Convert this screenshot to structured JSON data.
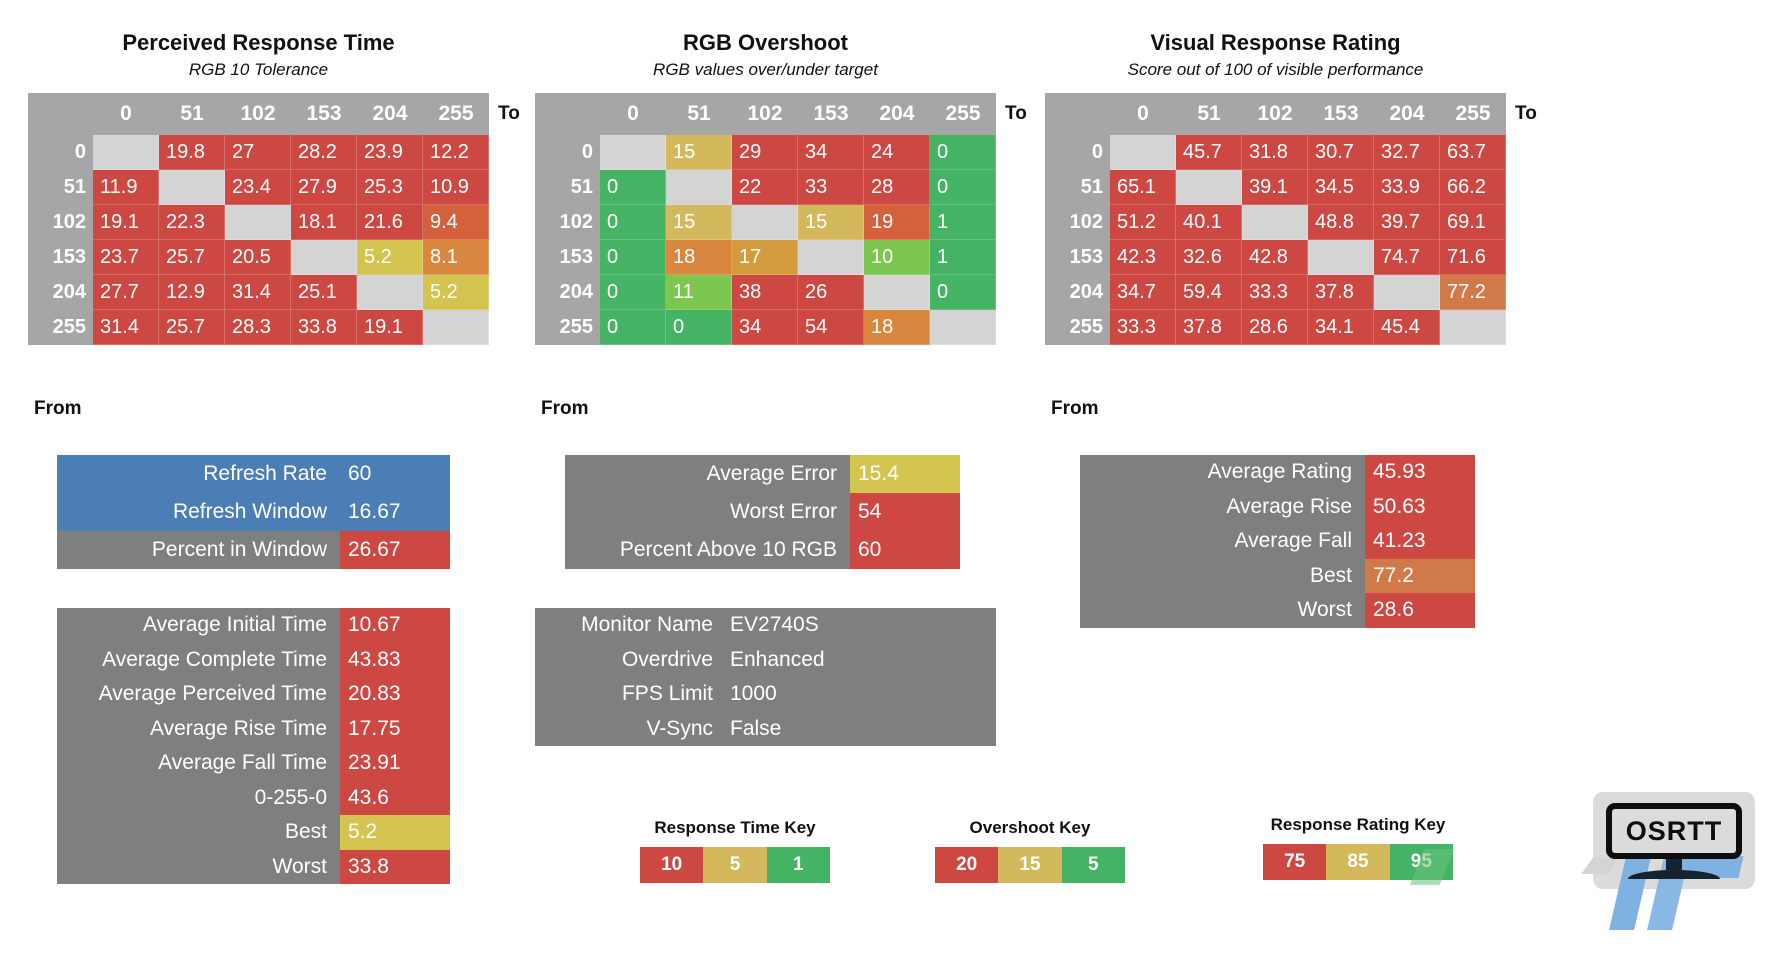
{
  "palette": {
    "red": "#CD4843",
    "yellow": "#D2C44E",
    "tan": "#D4B85C",
    "green": "#44B364",
    "light_green": "#7CC74F",
    "orange": "#D9873F",
    "gold_orange": "#D49B3E",
    "red_orange": "#D4603C",
    "salmon": "#D2794A",
    "header_gray": "#A6A6A6",
    "diag_gray": "#D4D4D4",
    "box_gray": "#7F7F7F",
    "blue": "#4A7EB4"
  },
  "tables": [
    {
      "title": "Perceived Response Time",
      "subtitle": "RGB 10 Tolerance",
      "to_label": "To",
      "from_label": "From",
      "col_headers": [
        "0",
        "51",
        "102",
        "153",
        "204",
        "255"
      ],
      "rows": [
        {
          "label": "0",
          "cells": [
            null,
            [
              "19.8",
              "red"
            ],
            [
              "27",
              "red"
            ],
            [
              "28.2",
              "red"
            ],
            [
              "23.9",
              "red"
            ],
            [
              "12.2",
              "red"
            ]
          ]
        },
        {
          "label": "51",
          "cells": [
            [
              "11.9",
              "red"
            ],
            null,
            [
              "23.4",
              "red"
            ],
            [
              "27.9",
              "red"
            ],
            [
              "25.3",
              "red"
            ],
            [
              "10.9",
              "red"
            ]
          ]
        },
        {
          "label": "102",
          "cells": [
            [
              "19.1",
              "red"
            ],
            [
              "22.3",
              "red"
            ],
            null,
            [
              "18.1",
              "red"
            ],
            [
              "21.6",
              "red"
            ],
            [
              "9.4",
              "red_orange"
            ]
          ]
        },
        {
          "label": "153",
          "cells": [
            [
              "23.7",
              "red"
            ],
            [
              "25.7",
              "red"
            ],
            [
              "20.5",
              "red"
            ],
            null,
            [
              "5.2",
              "yellow"
            ],
            [
              "8.1",
              "orange"
            ]
          ]
        },
        {
          "label": "204",
          "cells": [
            [
              "27.7",
              "red"
            ],
            [
              "12.9",
              "red"
            ],
            [
              "31.4",
              "red"
            ],
            [
              "25.1",
              "red"
            ],
            null,
            [
              "5.2",
              "yellow"
            ]
          ]
        },
        {
          "label": "255",
          "cells": [
            [
              "31.4",
              "red"
            ],
            [
              "25.7",
              "red"
            ],
            [
              "28.3",
              "red"
            ],
            [
              "33.8",
              "red"
            ],
            [
              "19.1",
              "red"
            ],
            null
          ]
        }
      ]
    },
    {
      "title": "RGB Overshoot",
      "subtitle": "RGB values over/under target",
      "to_label": "To",
      "from_label": "From",
      "col_headers": [
        "0",
        "51",
        "102",
        "153",
        "204",
        "255"
      ],
      "rows": [
        {
          "label": "0",
          "cells": [
            null,
            [
              "15",
              "tan"
            ],
            [
              "29",
              "red"
            ],
            [
              "34",
              "red"
            ],
            [
              "24",
              "red"
            ],
            [
              "0",
              "green"
            ]
          ]
        },
        {
          "label": "51",
          "cells": [
            [
              "0",
              "green"
            ],
            null,
            [
              "22",
              "red"
            ],
            [
              "33",
              "red"
            ],
            [
              "28",
              "red"
            ],
            [
              "0",
              "green"
            ]
          ]
        },
        {
          "label": "102",
          "cells": [
            [
              "0",
              "green"
            ],
            [
              "15",
              "tan"
            ],
            null,
            [
              "15",
              "tan"
            ],
            [
              "19",
              "red_orange"
            ],
            [
              "1",
              "green"
            ]
          ]
        },
        {
          "label": "153",
          "cells": [
            [
              "0",
              "green"
            ],
            [
              "18",
              "orange"
            ],
            [
              "17",
              "gold_orange"
            ],
            null,
            [
              "10",
              "light_green"
            ],
            [
              "1",
              "green"
            ]
          ]
        },
        {
          "label": "204",
          "cells": [
            [
              "0",
              "green"
            ],
            [
              "11",
              "light_green"
            ],
            [
              "38",
              "red"
            ],
            [
              "26",
              "red"
            ],
            null,
            [
              "0",
              "green"
            ]
          ]
        },
        {
          "label": "255",
          "cells": [
            [
              "0",
              "green"
            ],
            [
              "0",
              "green"
            ],
            [
              "34",
              "red"
            ],
            [
              "54",
              "red"
            ],
            [
              "18",
              "orange"
            ],
            null
          ]
        }
      ]
    },
    {
      "title": "Visual Response Rating",
      "subtitle": "Score out of 100 of visible performance",
      "to_label": "To",
      "from_label": "From",
      "col_headers": [
        "0",
        "51",
        "102",
        "153",
        "204",
        "255"
      ],
      "rows": [
        {
          "label": "0",
          "cells": [
            null,
            [
              "45.7",
              "red"
            ],
            [
              "31.8",
              "red"
            ],
            [
              "30.7",
              "red"
            ],
            [
              "32.7",
              "red"
            ],
            [
              "63.7",
              "red"
            ]
          ]
        },
        {
          "label": "51",
          "cells": [
            [
              "65.1",
              "red"
            ],
            null,
            [
              "39.1",
              "red"
            ],
            [
              "34.5",
              "red"
            ],
            [
              "33.9",
              "red"
            ],
            [
              "66.2",
              "red"
            ]
          ]
        },
        {
          "label": "102",
          "cells": [
            [
              "51.2",
              "red"
            ],
            [
              "40.1",
              "red"
            ],
            null,
            [
              "48.8",
              "red"
            ],
            [
              "39.7",
              "red"
            ],
            [
              "69.1",
              "red"
            ]
          ]
        },
        {
          "label": "153",
          "cells": [
            [
              "42.3",
              "red"
            ],
            [
              "32.6",
              "red"
            ],
            [
              "42.8",
              "red"
            ],
            null,
            [
              "74.7",
              "red"
            ],
            [
              "71.6",
              "red"
            ]
          ]
        },
        {
          "label": "204",
          "cells": [
            [
              "34.7",
              "red"
            ],
            [
              "59.4",
              "red"
            ],
            [
              "33.3",
              "red"
            ],
            [
              "37.8",
              "red"
            ],
            null,
            [
              "77.2",
              "salmon"
            ]
          ]
        },
        {
          "label": "255",
          "cells": [
            [
              "33.3",
              "red"
            ],
            [
              "37.8",
              "red"
            ],
            [
              "28.6",
              "red"
            ],
            [
              "34.1",
              "red"
            ],
            [
              "45.4",
              "red"
            ],
            null
          ]
        }
      ]
    }
  ],
  "refresh_box": {
    "rows": [
      {
        "label": "Refresh Rate",
        "value": "60",
        "row_bg": "blue",
        "value_bg": null
      },
      {
        "label": "Refresh Window",
        "value": "16.67",
        "row_bg": "blue",
        "value_bg": null
      },
      {
        "label": "Percent in Window",
        "value": "26.67",
        "row_bg": "gray",
        "value_bg": "red"
      }
    ]
  },
  "stats_box": {
    "rows": [
      {
        "label": "Average Initial Time",
        "value": "10.67",
        "row_bg": "gray",
        "value_bg": "red"
      },
      {
        "label": "Average Complete Time",
        "value": "43.83",
        "row_bg": "gray",
        "value_bg": "red"
      },
      {
        "label": "Average Perceived Time",
        "value": "20.83",
        "row_bg": "gray",
        "value_bg": "red"
      },
      {
        "label": "Average Rise Time",
        "value": "17.75",
        "row_bg": "gray",
        "value_bg": "red"
      },
      {
        "label": "Average Fall Time",
        "value": "23.91",
        "row_bg": "gray",
        "value_bg": "red"
      },
      {
        "label": "0-255-0",
        "value": "43.6",
        "row_bg": "gray",
        "value_bg": "red"
      },
      {
        "label": "Best",
        "value": "5.2",
        "row_bg": "gray",
        "value_bg": "yellow"
      },
      {
        "label": "Worst",
        "value": "33.8",
        "row_bg": "gray",
        "value_bg": "red"
      }
    ]
  },
  "error_box": {
    "rows": [
      {
        "label": "Average Error",
        "value": "15.4",
        "row_bg": "gray",
        "value_bg": "yellow"
      },
      {
        "label": "Worst Error",
        "value": "54",
        "row_bg": "gray",
        "value_bg": "red"
      },
      {
        "label": "Percent Above 10 RGB",
        "value": "60",
        "row_bg": "gray",
        "value_bg": "red"
      }
    ]
  },
  "monitor_box": {
    "rows": [
      {
        "label": "Monitor Name",
        "value": "EV2740S",
        "row_bg": "gray",
        "value_bg": null
      },
      {
        "label": "Overdrive",
        "value": "Enhanced",
        "row_bg": "gray",
        "value_bg": null
      },
      {
        "label": "FPS Limit",
        "value": "1000",
        "row_bg": "gray",
        "value_bg": null
      },
      {
        "label": "V-Sync",
        "value": "False",
        "row_bg": "gray",
        "value_bg": null
      }
    ]
  },
  "rating_box": {
    "rows": [
      {
        "label": "Average Rating",
        "value": "45.93",
        "row_bg": "gray",
        "value_bg": "red"
      },
      {
        "label": "Average Rise",
        "value": "50.63",
        "row_bg": "gray",
        "value_bg": "red"
      },
      {
        "label": "Average Fall",
        "value": "41.23",
        "row_bg": "gray",
        "value_bg": "red"
      },
      {
        "label": "Best",
        "value": "77.2",
        "row_bg": "gray",
        "value_bg": "salmon"
      },
      {
        "label": "Worst",
        "value": "28.6",
        "row_bg": "gray",
        "value_bg": "red"
      }
    ]
  },
  "keys": [
    {
      "title": "Response Time Key",
      "segments": [
        {
          "v": "10",
          "c": "red"
        },
        {
          "v": "5",
          "c": "tan"
        },
        {
          "v": "1",
          "c": "green"
        }
      ]
    },
    {
      "title": "Overshoot Key",
      "segments": [
        {
          "v": "20",
          "c": "red"
        },
        {
          "v": "15",
          "c": "tan"
        },
        {
          "v": "5",
          "c": "green"
        }
      ]
    },
    {
      "title": "Response Rating Key",
      "segments": [
        {
          "v": "75",
          "c": "red"
        },
        {
          "v": "85",
          "c": "tan"
        },
        {
          "v": "95",
          "c": "green"
        }
      ]
    }
  ],
  "logo": {
    "text": "OSRTT"
  },
  "chart_data": [
    {
      "type": "heatmap",
      "title": "Perceived Response Time",
      "subtitle": "RGB 10 Tolerance",
      "x_label": "To",
      "y_label": "From",
      "x": [
        0,
        51,
        102,
        153,
        204,
        255
      ],
      "y": [
        0,
        51,
        102,
        153,
        204,
        255
      ],
      "values": [
        [
          null,
          19.8,
          27,
          28.2,
          23.9,
          12.2
        ],
        [
          11.9,
          null,
          23.4,
          27.9,
          25.3,
          10.9
        ],
        [
          19.1,
          22.3,
          null,
          18.1,
          21.6,
          9.4
        ],
        [
          23.7,
          25.7,
          20.5,
          null,
          5.2,
          8.1
        ],
        [
          27.7,
          12.9,
          31.4,
          25.1,
          null,
          5.2
        ],
        [
          31.4,
          25.7,
          28.3,
          33.8,
          19.1,
          null
        ]
      ],
      "color_key": {
        "red": 10,
        "tan": 5,
        "green": 1
      }
    },
    {
      "type": "heatmap",
      "title": "RGB Overshoot",
      "subtitle": "RGB values over/under target",
      "x_label": "To",
      "y_label": "From",
      "x": [
        0,
        51,
        102,
        153,
        204,
        255
      ],
      "y": [
        0,
        51,
        102,
        153,
        204,
        255
      ],
      "values": [
        [
          null,
          15,
          29,
          34,
          24,
          0
        ],
        [
          0,
          null,
          22,
          33,
          28,
          0
        ],
        [
          0,
          15,
          null,
          15,
          19,
          1
        ],
        [
          0,
          18,
          17,
          null,
          10,
          1
        ],
        [
          0,
          11,
          38,
          26,
          null,
          0
        ],
        [
          0,
          0,
          34,
          54,
          18,
          null
        ]
      ],
      "color_key": {
        "red": 20,
        "tan": 15,
        "green": 5
      }
    },
    {
      "type": "heatmap",
      "title": "Visual Response Rating",
      "subtitle": "Score out of 100 of visible performance",
      "x_label": "To",
      "y_label": "From",
      "x": [
        0,
        51,
        102,
        153,
        204,
        255
      ],
      "y": [
        0,
        51,
        102,
        153,
        204,
        255
      ],
      "values": [
        [
          null,
          45.7,
          31.8,
          30.7,
          32.7,
          63.7
        ],
        [
          65.1,
          null,
          39.1,
          34.5,
          33.9,
          66.2
        ],
        [
          51.2,
          40.1,
          null,
          48.8,
          39.7,
          69.1
        ],
        [
          42.3,
          32.6,
          42.8,
          null,
          74.7,
          71.6
        ],
        [
          34.7,
          59.4,
          33.3,
          37.8,
          null,
          77.2
        ],
        [
          33.3,
          37.8,
          28.6,
          34.1,
          45.4,
          null
        ]
      ],
      "color_key": {
        "red": 75,
        "tan": 85,
        "green": 95
      }
    }
  ]
}
